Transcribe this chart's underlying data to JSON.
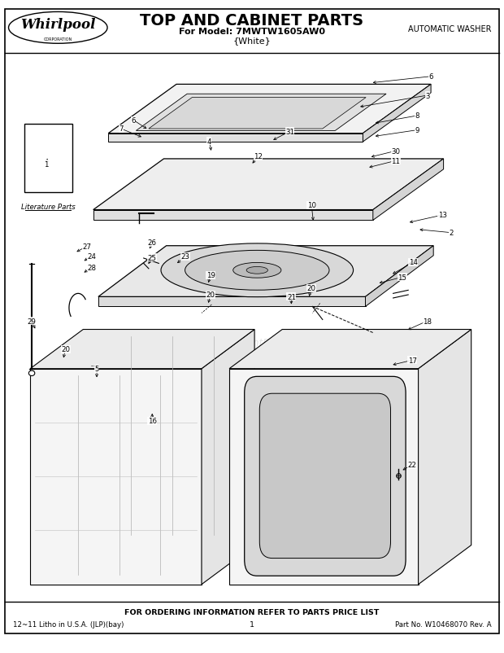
{
  "title": "TOP AND CABINET PARTS",
  "subtitle_model": "For Model: 7MWTW1605AW0",
  "subtitle_color": "{White}",
  "top_right_text": "AUTOMATIC WASHER",
  "bottom_center_text": "FOR ORDERING INFORMATION REFER TO PARTS PRICE LIST",
  "bottom_left_text": "12~11 Litho in U.S.A. (JLP)(bay)",
  "bottom_center_num": "1",
  "bottom_right_text": "Part No. W10468070 Rev. A",
  "literature_label": "Literature Parts",
  "bg_color": "#ffffff",
  "border_color": "#000000",
  "text_color": "#000000",
  "fig_width": 6.2,
  "fig_height": 8.03,
  "dpi": 100
}
